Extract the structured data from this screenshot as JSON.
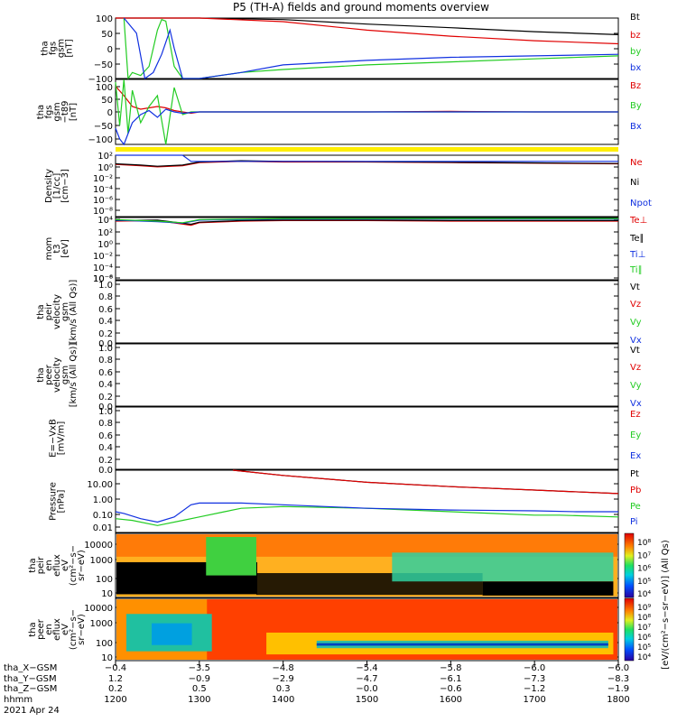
{
  "title": "P5 (TH-A) fields and ground moments overview",
  "colors": {
    "black": "#000000",
    "red": "#e00000",
    "green": "#22cc22",
    "blue": "#1030e0",
    "yellow": "#ffee00"
  },
  "chart_data": [
    {
      "type": "line",
      "panel": "fgs_gsm",
      "ylabel": [
        "tha",
        "fgs",
        "gsm",
        "[nT]"
      ],
      "yticks": [
        "100",
        "50",
        "0",
        "−50",
        "−100"
      ],
      "ylim": [
        -100,
        100
      ],
      "xlim": [
        1200,
        1800
      ],
      "series": [
        {
          "name": "Bt",
          "color": "black",
          "x": [
            1200,
            1205,
            1215,
            1225,
            1230,
            1260,
            1300,
            1400,
            1500,
            1600,
            1700,
            1800
          ],
          "y": [
            100,
            100,
            100,
            100,
            100,
            100,
            100,
            95,
            80,
            68,
            55,
            45
          ]
        },
        {
          "name": "bz",
          "color": "red",
          "x": [
            1200,
            1205,
            1230,
            1260,
            1300,
            1400,
            1500,
            1600,
            1700,
            1800
          ],
          "y": [
            100,
            100,
            100,
            100,
            100,
            88,
            60,
            40,
            25,
            15
          ]
        },
        {
          "name": "by",
          "color": "green",
          "x": [
            1210,
            1215,
            1220,
            1230,
            1240,
            1245,
            1250,
            1255,
            1260,
            1270,
            1280,
            1300,
            1350,
            1400,
            1500,
            1600,
            1700,
            1800
          ],
          "y": [
            100,
            -100,
            -80,
            -90,
            -60,
            0,
            60,
            95,
            90,
            -60,
            -100,
            -100,
            -80,
            -70,
            -55,
            -45,
            -35,
            -25
          ]
        },
        {
          "name": "bx",
          "color": "blue",
          "x": [
            1210,
            1225,
            1235,
            1245,
            1255,
            1265,
            1270,
            1280,
            1300,
            1350,
            1400,
            1500,
            1600,
            1700,
            1800
          ],
          "y": [
            100,
            50,
            -100,
            -80,
            -20,
            60,
            0,
            -100,
            -100,
            -80,
            -55,
            -40,
            -30,
            -25,
            -20
          ]
        }
      ]
    },
    {
      "type": "line",
      "panel": "fgs_gse_minus_t89",
      "ylabel": [
        "tha",
        "fgs",
        "gsm",
        "−t89",
        "[nT]"
      ],
      "yticks": [
        "100",
        "50",
        "0",
        "−50",
        "−100"
      ],
      "ylim": [
        -120,
        120
      ],
      "xlim": [
        1200,
        1800
      ],
      "series": [
        {
          "name": "Bz",
          "color": "red",
          "x": [
            1200,
            1210,
            1220,
            1230,
            1240,
            1250,
            1260,
            1270,
            1280,
            1290,
            1300,
            1400,
            1500,
            1600,
            1700,
            1800
          ],
          "y": [
            95,
            60,
            20,
            10,
            15,
            20,
            15,
            5,
            0,
            -5,
            0,
            0,
            0,
            2,
            0,
            0
          ]
        },
        {
          "name": "By",
          "color": "green",
          "x": [
            1200,
            1205,
            1210,
            1215,
            1220,
            1230,
            1240,
            1250,
            1260,
            1270,
            1280,
            1290,
            1300,
            1400,
            1500,
            1600,
            1700,
            1800
          ],
          "y": [
            110,
            -50,
            120,
            -80,
            80,
            -40,
            20,
            60,
            -120,
            90,
            -10,
            0,
            0,
            0,
            0,
            0,
            0,
            0
          ]
        },
        {
          "name": "Bx",
          "color": "blue",
          "x": [
            1200,
            1205,
            1210,
            1215,
            1220,
            1230,
            1240,
            1250,
            1260,
            1270,
            1280,
            1300,
            1400,
            1500,
            1600,
            1700,
            1800
          ],
          "y": [
            -60,
            -100,
            -120,
            -80,
            -40,
            -10,
            5,
            -20,
            10,
            0,
            -5,
            0,
            0,
            0,
            0,
            0,
            0
          ]
        }
      ]
    },
    {
      "type": "line",
      "panel": "density",
      "ylabel": [
        "Density",
        "[1/cc]",
        "[cm−3]"
      ],
      "yticks": [
        "10²",
        "10⁰",
        "10⁻²",
        "10⁻⁴",
        "10⁻⁶",
        "10⁻⁸"
      ],
      "ylim": [
        -8,
        2
      ],
      "yscale": "log",
      "xlim": [
        1200,
        1800
      ],
      "series": [
        {
          "name": "Ne",
          "color": "red",
          "x": [
            1200,
            1230,
            1250,
            1280,
            1300,
            1350,
            1400,
            1500,
            1600,
            1700,
            1800
          ],
          "y": [
            0.5,
            0.3,
            0.1,
            0.3,
            0.8,
            1.0,
            0.9,
            0.9,
            0.8,
            0.7,
            0.6
          ]
        },
        {
          "name": "Ni",
          "color": "black",
          "x": [
            1200,
            1230,
            1250,
            1280,
            1300,
            1350,
            1400,
            1500,
            1600,
            1700,
            1800
          ],
          "y": [
            0.6,
            0.4,
            0.2,
            0.4,
            0.9,
            1.1,
            1.0,
            0.95,
            0.85,
            0.75,
            0.65
          ]
        },
        {
          "name": "Npot",
          "color": "blue",
          "x": [
            1200,
            1205,
            1280,
            1290,
            1800
          ],
          "y": [
            2,
            2,
            2,
            1,
            1
          ]
        }
      ]
    },
    {
      "type": "line",
      "panel": "temperature",
      "ylabel": [
        "mom",
        "t3",
        "[eV]"
      ],
      "yticks": [
        "10⁴",
        "10²",
        "10⁰",
        "10⁻²",
        "10⁻⁴",
        "10⁻⁶",
        "10⁻⁸"
      ],
      "ylim": [
        -8,
        4
      ],
      "yscale": "log",
      "xlim": [
        1200,
        1800
      ],
      "series": [
        {
          "name": "Te⊥",
          "color": "red",
          "x": [
            1200,
            1250,
            1290,
            1300,
            1350,
            1400,
            1500,
            1600,
            1700,
            1800
          ],
          "y": [
            3.3,
            3.4,
            2.5,
            3.0,
            3.3,
            3.4,
            3.4,
            3.3,
            3.3,
            3.3
          ]
        },
        {
          "name": "Te∥",
          "color": "black",
          "x": [
            1200,
            1250,
            1290,
            1300,
            1350,
            1400,
            1500,
            1600,
            1700,
            1800
          ],
          "y": [
            3.4,
            3.5,
            2.7,
            3.1,
            3.4,
            3.5,
            3.5,
            3.4,
            3.4,
            3.4
          ]
        },
        {
          "name": "Ti⊥",
          "color": "blue",
          "x": [
            1200,
            1250,
            1280,
            1300,
            1400,
            1500,
            1600,
            1700,
            1800
          ],
          "y": [
            3.5,
            3.2,
            2.9,
            3.5,
            3.7,
            3.7,
            3.7,
            3.7,
            3.7
          ]
        },
        {
          "name": "Ti∥",
          "color": "green",
          "x": [
            1200,
            1250,
            1280,
            1300,
            1400,
            1500,
            1600,
            1700,
            1800
          ],
          "y": [
            3.6,
            3.3,
            3.0,
            3.6,
            3.8,
            3.8,
            3.8,
            3.8,
            3.8
          ]
        }
      ]
    },
    {
      "type": "line",
      "panel": "peir_velocity",
      "ylabel": [
        "tha",
        "peir",
        "velocity",
        "gsm",
        "[km/s (All Qs)]"
      ],
      "yticks": [
        "1.0",
        "0.8",
        "0.6",
        "0.4",
        "0.2",
        "0.0"
      ],
      "ylim": [
        0,
        1
      ],
      "xlim": [
        1200,
        1800
      ],
      "legend": [
        "Vt",
        "Vz",
        "Vy",
        "Vx"
      ],
      "series": []
    },
    {
      "type": "line",
      "panel": "peer_velocity",
      "ylabel": [
        "tha",
        "peer",
        "velocity",
        "gsm",
        "[km/s (All Qs)]"
      ],
      "yticks": [
        "1.0",
        "0.8",
        "0.6",
        "0.4",
        "0.2",
        "0.0"
      ],
      "ylim": [
        0,
        1
      ],
      "xlim": [
        1200,
        1800
      ],
      "legend": [
        "Vt",
        "Vz",
        "Vy",
        "Vx"
      ],
      "series": []
    },
    {
      "type": "line",
      "panel": "efield",
      "ylabel": [
        "E=−VxB",
        "[mV/m]"
      ],
      "yticks": [
        "1.0",
        "0.8",
        "0.6",
        "0.4",
        "0.2",
        "0.0"
      ],
      "ylim": [
        0,
        1
      ],
      "xlim": [
        1200,
        1800
      ],
      "legend": [
        "Ez",
        "Ey",
        "Ex"
      ],
      "series": []
    },
    {
      "type": "line",
      "panel": "pressure",
      "ylabel": [
        "Pressure",
        "[nPa]"
      ],
      "yticks": [
        "10.00",
        "1.00",
        "0.10",
        "0.01"
      ],
      "ylim": [
        -2.3,
        1.3
      ],
      "yscale": "log",
      "xlim": [
        1200,
        1800
      ],
      "series": [
        {
          "name": "Pt",
          "color": "black",
          "x": [
            1340,
            1400,
            1500,
            1600,
            1700,
            1800
          ],
          "y": [
            1.3,
            1.0,
            0.6,
            0.35,
            0.15,
            -0.05
          ]
        },
        {
          "name": "Pb",
          "color": "red",
          "x": [
            1340,
            1400,
            1500,
            1600,
            1700,
            1800
          ],
          "y": [
            1.3,
            1.0,
            0.6,
            0.35,
            0.15,
            -0.05
          ]
        },
        {
          "name": "Pe",
          "color": "green",
          "x": [
            1200,
            1220,
            1250,
            1280,
            1300,
            1330,
            1350,
            1400,
            1500,
            1600,
            1650,
            1700,
            1730,
            1800
          ],
          "y": [
            -1.5,
            -1.6,
            -1.9,
            -1.6,
            -1.4,
            -1.1,
            -0.9,
            -0.8,
            -0.9,
            -1.1,
            -1.2,
            -1.3,
            -1.3,
            -1.4
          ]
        },
        {
          "name": "Pi",
          "color": "blue",
          "x": [
            1200,
            1210,
            1230,
            1250,
            1270,
            1290,
            1300,
            1350,
            1400,
            1500,
            1600,
            1700,
            1750,
            1800
          ],
          "y": [
            -1.1,
            -1.2,
            -1.5,
            -1.7,
            -1.4,
            -0.7,
            -0.6,
            -0.6,
            -0.7,
            -0.9,
            -1.0,
            -1.05,
            -1.1,
            -1.1
          ]
        }
      ]
    },
    {
      "type": "heatmap",
      "panel": "peir_en_eflux",
      "ylabel": [
        "tha",
        "peir",
        "en",
        "eflux",
        "eV",
        "(cm²−s−",
        "sr−eV)"
      ],
      "yticks": [
        "10000",
        "1000",
        "100",
        "10"
      ],
      "colorbar_ticks": [
        "10⁸",
        "10⁷",
        "10⁶",
        "10⁵",
        "10⁴"
      ]
    },
    {
      "type": "heatmap",
      "panel": "peer_en_eflux",
      "ylabel": [
        "tha",
        "peer",
        "en",
        "eflux",
        "eV",
        "(cm²−s−",
        "sr−eV)"
      ],
      "yticks": [
        "10000",
        "1000",
        "100",
        "10"
      ],
      "colorbar_ticks": [
        "10⁹",
        "10⁸",
        "10⁷",
        "10⁶",
        "10⁵",
        "10⁴"
      ]
    }
  ],
  "colorbar_label": "[eV/(cm²−s−sr−eV)] (All Qs)",
  "axis": {
    "rows": [
      {
        "label": "tha_X−GSM",
        "values": [
          "−0.4",
          "−3.5",
          "−4.8",
          "−5.4",
          "−5.8",
          "−6.0",
          "−6.0"
        ]
      },
      {
        "label": "tha_Y−GSM",
        "values": [
          "1.2",
          "−0.9",
          "−2.9",
          "−4.7",
          "−6.1",
          "−7.3",
          "−8.3"
        ]
      },
      {
        "label": "tha_Z−GSM",
        "values": [
          "0.2",
          "0.5",
          "0.3",
          "−0.0",
          "−0.6",
          "−1.2",
          "−1.9"
        ]
      },
      {
        "label": "hhmm",
        "values": [
          "1200",
          "1300",
          "1400",
          "1500",
          "1600",
          "1700",
          "1800"
        ]
      }
    ],
    "date": "2021 Apr 24"
  },
  "legends": [
    [
      {
        "text": "Bt",
        "color": "black"
      },
      {
        "text": "bz",
        "color": "red"
      },
      {
        "text": "by",
        "color": "green"
      },
      {
        "text": "bx",
        "color": "blue"
      }
    ],
    [
      {
        "text": "Bz",
        "color": "red"
      },
      {
        "text": "By",
        "color": "green"
      },
      {
        "text": "Bx",
        "color": "blue"
      }
    ],
    [
      {
        "text": "Ne",
        "color": "red"
      },
      {
        "text": "Ni",
        "color": "black"
      },
      {
        "text": "Npot",
        "color": "blue"
      }
    ],
    [
      {
        "text": "Te⊥",
        "color": "red"
      },
      {
        "text": "Te∥",
        "color": "black"
      },
      {
        "text": "Ti⊥",
        "color": "blue"
      },
      {
        "text": "Ti∥",
        "color": "green"
      }
    ],
    [
      {
        "text": "Vt",
        "color": "black"
      },
      {
        "text": "Vz",
        "color": "red"
      },
      {
        "text": "Vy",
        "color": "green"
      },
      {
        "text": "Vx",
        "color": "blue"
      }
    ],
    [
      {
        "text": "Vt",
        "color": "black"
      },
      {
        "text": "Vz",
        "color": "red"
      },
      {
        "text": "Vy",
        "color": "green"
      },
      {
        "text": "Vx",
        "color": "blue"
      }
    ],
    [
      {
        "text": "Ez",
        "color": "red"
      },
      {
        "text": "Ey",
        "color": "green"
      },
      {
        "text": "Ex",
        "color": "blue"
      }
    ],
    [
      {
        "text": "Pt",
        "color": "black"
      },
      {
        "text": "Pb",
        "color": "red"
      },
      {
        "text": "Pe",
        "color": "green"
      },
      {
        "text": "Pi",
        "color": "blue"
      }
    ]
  ]
}
